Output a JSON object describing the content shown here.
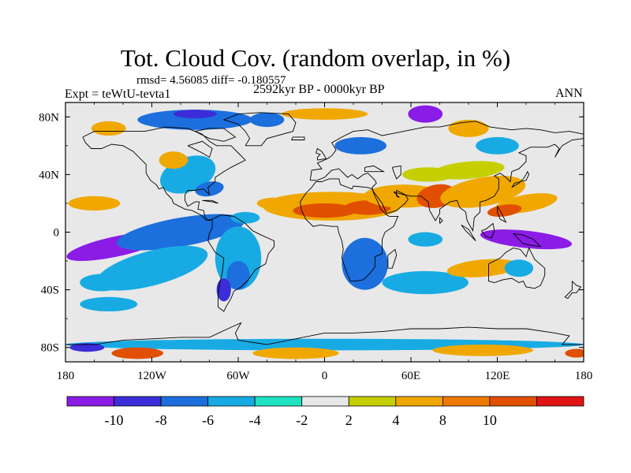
{
  "header": {
    "title": "Tot. Cloud Cov. (random overlap, in %)",
    "stats": "rmsd= 4.56085 diff= -0.180557",
    "experiment": "Expt = teWtU-tevta1",
    "period": "2592kyr BP - 0000kyr BP",
    "season": "ANN"
  },
  "map": {
    "projection": "cylindrical-equidistant",
    "lon_range": [
      -180,
      180
    ],
    "lat_range": [
      -90,
      90
    ],
    "lon_ticks": [
      {
        "value": -180,
        "label": "180"
      },
      {
        "value": -120,
        "label": "120W"
      },
      {
        "value": -60,
        "label": "60W"
      },
      {
        "value": 0,
        "label": "0"
      },
      {
        "value": 60,
        "label": "60E"
      },
      {
        "value": 120,
        "label": "120E"
      },
      {
        "value": 180,
        "label": "180"
      }
    ],
    "lat_ticks": [
      {
        "value": 80,
        "label": "80N"
      },
      {
        "value": 40,
        "label": "40N"
      },
      {
        "value": 0,
        "label": "0"
      },
      {
        "value": -40,
        "label": "40S"
      },
      {
        "value": -80,
        "label": "80S"
      }
    ],
    "background_color": "#e8e8e8",
    "regions": [
      {
        "name": "pacific-south-band",
        "lon": -145,
        "lat": -10,
        "rx": 35,
        "ry": 7,
        "rot": -12,
        "c": 0
      },
      {
        "name": "pacific-south-band-2",
        "lon": -110,
        "lat": -22,
        "rx": 22,
        "ry": 6,
        "rot": -18,
        "c": 0
      },
      {
        "name": "pacific-equator-west",
        "lon": 140,
        "lat": -5,
        "rx": 32,
        "ry": 6,
        "rot": 6,
        "c": 0
      },
      {
        "name": "east-pacific-cold",
        "lon": -100,
        "lat": 0,
        "rx": 45,
        "ry": 10,
        "rot": -10,
        "c": 2
      },
      {
        "name": "east-pacific-cyan",
        "lon": -120,
        "lat": -25,
        "rx": 40,
        "ry": 12,
        "rot": -15,
        "c": 3
      },
      {
        "name": "south-africa",
        "lon": 28,
        "lat": -20,
        "rx": 10,
        "ry": 12,
        "rot": 0,
        "c": 0
      },
      {
        "name": "south-africa-blue",
        "lon": 28,
        "lat": -22,
        "rx": 16,
        "ry": 18,
        "rot": 0,
        "c": 2
      },
      {
        "name": "south-america",
        "lon": -60,
        "lat": -18,
        "rx": 16,
        "ry": 22,
        "rot": 0,
        "c": 3
      },
      {
        "name": "south-america-core",
        "lon": -60,
        "lat": -30,
        "rx": 8,
        "ry": 10,
        "rot": 0,
        "c": 2
      },
      {
        "name": "andes-blue",
        "lon": -70,
        "lat": -40,
        "rx": 5,
        "ry": 8,
        "rot": 0,
        "c": 1
      },
      {
        "name": "north-africa-orange",
        "lon": 5,
        "lat": 18,
        "rx": 48,
        "ry": 10,
        "rot": 0,
        "c": 7
      },
      {
        "name": "sahel-red",
        "lon": 0,
        "lat": 15,
        "rx": 22,
        "ry": 5,
        "rot": 0,
        "c": 9
      },
      {
        "name": "sahel-red-2",
        "lon": 30,
        "lat": 17,
        "rx": 16,
        "ry": 5,
        "rot": 0,
        "c": 9
      },
      {
        "name": "arabia-orange",
        "lon": 55,
        "lat": 25,
        "rx": 28,
        "ry": 8,
        "rot": 0,
        "c": 7
      },
      {
        "name": "india-red",
        "lon": 78,
        "lat": 25,
        "rx": 14,
        "ry": 8,
        "rot": -10,
        "c": 9
      },
      {
        "name": "asia-orange",
        "lon": 110,
        "lat": 28,
        "rx": 30,
        "ry": 10,
        "rot": -10,
        "c": 7
      },
      {
        "name": "mongolia-yellow",
        "lon": 100,
        "lat": 43,
        "rx": 25,
        "ry": 6,
        "rot": -5,
        "c": 6
      },
      {
        "name": "central-asia-yellow",
        "lon": 72,
        "lat": 40,
        "rx": 18,
        "ry": 5,
        "rot": 0,
        "c": 6
      },
      {
        "name": "west-pacific-orange",
        "lon": 140,
        "lat": 20,
        "rx": 22,
        "ry": 6,
        "rot": -10,
        "c": 7
      },
      {
        "name": "west-pacific-red",
        "lon": 125,
        "lat": 15,
        "rx": 12,
        "ry": 4,
        "rot": -8,
        "c": 9
      },
      {
        "name": "atlantic-orange-north",
        "lon": -160,
        "lat": 20,
        "rx": 18,
        "ry": 5,
        "rot": 0,
        "c": 7
      },
      {
        "name": "atlantic-orange",
        "lon": -35,
        "lat": 20,
        "rx": 12,
        "ry": 4,
        "rot": 0,
        "c": 7
      },
      {
        "name": "west-atlantic-cyan",
        "lon": -55,
        "lat": 10,
        "rx": 10,
        "ry": 4,
        "rot": 0,
        "c": 3
      },
      {
        "name": "north-america-cyan",
        "lon": -95,
        "lat": 40,
        "rx": 20,
        "ry": 12,
        "rot": -20,
        "c": 3
      },
      {
        "name": "north-america-blue",
        "lon": -80,
        "lat": 30,
        "rx": 10,
        "ry": 5,
        "rot": -10,
        "c": 2
      },
      {
        "name": "north-america-orange",
        "lon": -105,
        "lat": 50,
        "rx": 10,
        "ry": 6,
        "rot": 0,
        "c": 7
      },
      {
        "name": "arctic-blue-canada",
        "lon": -90,
        "lat": 78,
        "rx": 40,
        "ry": 7,
        "rot": 0,
        "c": 2
      },
      {
        "name": "arctic-purple",
        "lon": -90,
        "lat": 82,
        "rx": 15,
        "ry": 3,
        "rot": 0,
        "c": 1
      },
      {
        "name": "greenland-blue",
        "lon": -40,
        "lat": 78,
        "rx": 12,
        "ry": 5,
        "rot": 0,
        "c": 2
      },
      {
        "name": "arctic-orange",
        "lon": 0,
        "lat": 82,
        "rx": 30,
        "ry": 4,
        "rot": 0,
        "c": 7
      },
      {
        "name": "siberia-purple",
        "lon": 70,
        "lat": 82,
        "rx": 12,
        "ry": 6,
        "rot": 0,
        "c": 0
      },
      {
        "name": "siberia-orange",
        "lon": 100,
        "lat": 72,
        "rx": 14,
        "ry": 6,
        "rot": 0,
        "c": 7
      },
      {
        "name": "siberia-cyan",
        "lon": 120,
        "lat": 60,
        "rx": 15,
        "ry": 6,
        "rot": 0,
        "c": 3
      },
      {
        "name": "europe-blue",
        "lon": 25,
        "lat": 60,
        "rx": 18,
        "ry": 6,
        "rot": 0,
        "c": 2
      },
      {
        "name": "alaska-orange",
        "lon": -150,
        "lat": 72,
        "rx": 12,
        "ry": 5,
        "rot": 0,
        "c": 7
      },
      {
        "name": "south-indian-cyan",
        "lon": 70,
        "lat": -35,
        "rx": 30,
        "ry": 8,
        "rot": 0,
        "c": 3
      },
      {
        "name": "south-indian-orange",
        "lon": 110,
        "lat": -25,
        "rx": 25,
        "ry": 6,
        "rot": -5,
        "c": 7
      },
      {
        "name": "indian-ocean-blue",
        "lon": 70,
        "lat": -5,
        "rx": 12,
        "ry": 5,
        "rot": 0,
        "c": 3
      },
      {
        "name": "southern-ocean-cyan",
        "lon": -150,
        "lat": -50,
        "rx": 20,
        "ry": 5,
        "rot": 0,
        "c": 3
      },
      {
        "name": "antarctic-cyan-band",
        "lon": 0,
        "lat": -78,
        "rx": 180,
        "ry": 4,
        "rot": 0,
        "c": 3
      },
      {
        "name": "antarctic-orange-west",
        "lon": -130,
        "lat": -84,
        "rx": 18,
        "ry": 4,
        "rot": 0,
        "c": 9
      },
      {
        "name": "antarctic-orange-2",
        "lon": -20,
        "lat": -84,
        "rx": 30,
        "ry": 4,
        "rot": 0,
        "c": 7
      },
      {
        "name": "antarctic-orange-3",
        "lon": 110,
        "lat": -82,
        "rx": 35,
        "ry": 4,
        "rot": 0,
        "c": 7
      },
      {
        "name": "antarctic-blue",
        "lon": -165,
        "lat": -80,
        "rx": 12,
        "ry": 3,
        "rot": 0,
        "c": 1
      },
      {
        "name": "antarctic-red-east",
        "lon": 175,
        "lat": -84,
        "rx": 8,
        "ry": 3,
        "rot": 0,
        "c": 9
      },
      {
        "name": "australia-cyan",
        "lon": 135,
        "lat": -25,
        "rx": 10,
        "ry": 6,
        "rot": 0,
        "c": 3
      },
      {
        "name": "pacific-cyan-south",
        "lon": -155,
        "lat": -35,
        "rx": 15,
        "ry": 6,
        "rot": 0,
        "c": 3
      }
    ]
  },
  "colorbar": {
    "colors": [
      "#8a1ce6",
      "#3b2dd8",
      "#1c6fdc",
      "#18abe3",
      "#1de3c0",
      "#e8e8e8",
      "#c5cf00",
      "#f0a800",
      "#ee7a00",
      "#e05000",
      "#e01414"
    ],
    "labels": [
      "-10",
      "-8",
      "-6",
      "-4",
      "-2",
      "2",
      "4",
      "8",
      "10"
    ]
  }
}
